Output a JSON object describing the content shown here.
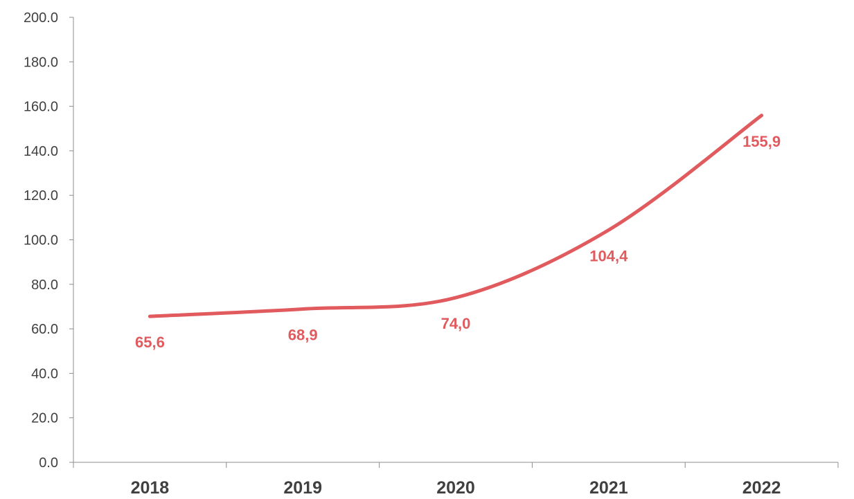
{
  "chart_data": {
    "type": "line",
    "categories": [
      "2018",
      "2019",
      "2020",
      "2021",
      "2022"
    ],
    "series": [
      {
        "values": [
          65.6,
          68.9,
          74.0,
          104.4,
          155.9
        ],
        "data_labels": [
          "65,6",
          "68,9",
          "74,0",
          "104,4",
          "155,9"
        ],
        "color": "#e05a5e",
        "smooth": true
      }
    ],
    "yticks": [
      "0.0",
      "20.0",
      "40.0",
      "60.0",
      "80.0",
      "100.0",
      "120.0",
      "140.0",
      "160.0",
      "180.0",
      "200.0"
    ],
    "ylim": [
      0,
      200
    ],
    "grid": false,
    "legend": "none"
  }
}
